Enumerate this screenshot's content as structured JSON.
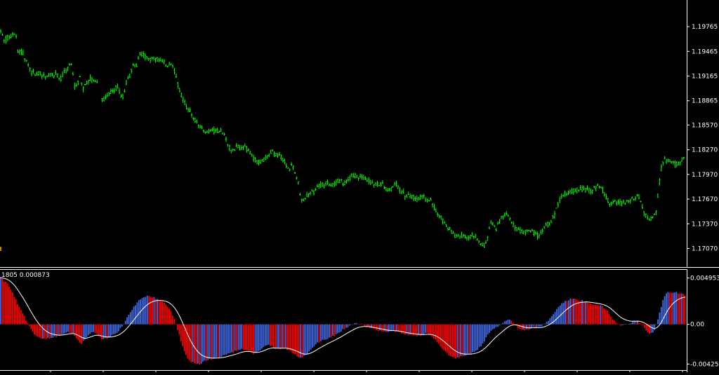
{
  "chart_data": [
    {
      "type": "candlestick",
      "title": "",
      "price_axis": {
        "ticks": [
          "1.19765",
          "1.19465",
          "1.19165",
          "1.18865",
          "1.18570",
          "1.18270",
          "1.17970",
          "1.17670",
          "1.17370",
          "1.17070"
        ],
        "tick_values": [
          1.19765,
          1.19465,
          1.19165,
          1.18865,
          1.1857,
          1.1827,
          1.1797,
          1.1767,
          1.1737,
          1.1707
        ],
        "ylim": [
          1.1687,
          1.20055
        ]
      },
      "colors": {
        "candle": "#00ff00",
        "background": "#000000",
        "axis": "#ffffff"
      },
      "price_path": [
        [
          0,
          1.1972
        ],
        [
          6,
          1.1958
        ],
        [
          12,
          1.1965
        ],
        [
          18,
          1.1965
        ],
        [
          22,
          1.1972
        ],
        [
          26,
          1.1945
        ],
        [
          32,
          1.1945
        ],
        [
          38,
          1.1935
        ],
        [
          44,
          1.1921
        ],
        [
          50,
          1.192
        ],
        [
          56,
          1.192
        ],
        [
          62,
          1.1916
        ],
        [
          68,
          1.1919
        ],
        [
          74,
          1.1917
        ],
        [
          80,
          1.1918
        ],
        [
          86,
          1.1913
        ],
        [
          92,
          1.1921
        ],
        [
          96,
          1.1925
        ],
        [
          100,
          1.1933
        ],
        [
          103,
          1.1925
        ],
        [
          106,
          1.1905
        ],
        [
          110,
          1.1904
        ],
        [
          114,
          1.1915
        ],
        [
          118,
          1.19
        ],
        [
          122,
          1.1906
        ],
        [
          127,
          1.1913
        ],
        [
          133,
          1.1912
        ],
        [
          140,
          1.191
        ],
        [
          145,
          1.1887
        ],
        [
          150,
          1.189
        ],
        [
          156,
          1.1895
        ],
        [
          162,
          1.19
        ],
        [
          168,
          1.1903
        ],
        [
          174,
          1.1888
        ],
        [
          180,
          1.1908
        ],
        [
          186,
          1.192
        ],
        [
          190,
          1.1931
        ],
        [
          194,
          1.1928
        ],
        [
          198,
          1.194
        ],
        [
          203,
          1.1945
        ],
        [
          208,
          1.194
        ],
        [
          214,
          1.1937
        ],
        [
          220,
          1.1938
        ],
        [
          226,
          1.1935
        ],
        [
          232,
          1.1933
        ],
        [
          238,
          1.193
        ],
        [
          244,
          1.1931
        ],
        [
          248,
          1.1925
        ],
        [
          252,
          1.191
        ],
        [
          256,
          1.19
        ],
        [
          262,
          1.1885
        ],
        [
          268,
          1.1875
        ],
        [
          274,
          1.187
        ],
        [
          280,
          1.186
        ],
        [
          286,
          1.1853
        ],
        [
          292,
          1.1849
        ],
        [
          298,
          1.1849
        ],
        [
          304,
          1.185
        ],
        [
          310,
          1.185
        ],
        [
          316,
          1.1849
        ],
        [
          320,
          1.1845
        ],
        [
          326,
          1.183
        ],
        [
          332,
          1.1826
        ],
        [
          338,
          1.183
        ],
        [
          344,
          1.1829
        ],
        [
          350,
          1.183
        ],
        [
          356,
          1.1825
        ],
        [
          362,
          1.1815
        ],
        [
          368,
          1.1812
        ],
        [
          374,
          1.1814
        ],
        [
          380,
          1.1818
        ],
        [
          386,
          1.1825
        ],
        [
          392,
          1.1822
        ],
        [
          398,
          1.182
        ],
        [
          404,
          1.1815
        ],
        [
          408,
          1.1805
        ],
        [
          412,
          1.18
        ],
        [
          416,
          1.181
        ],
        [
          420,
          1.18
        ],
        [
          424,
          1.179
        ],
        [
          428,
          1.177
        ],
        [
          432,
          1.1766
        ],
        [
          436,
          1.177
        ],
        [
          440,
          1.1773
        ],
        [
          444,
          1.178
        ],
        [
          448,
          1.1775
        ],
        [
          452,
          1.1782
        ],
        [
          456,
          1.1783
        ],
        [
          462,
          1.1785
        ],
        [
          468,
          1.1786
        ],
        [
          474,
          1.1783
        ],
        [
          480,
          1.1787
        ],
        [
          486,
          1.179
        ],
        [
          490,
          1.1785
        ],
        [
          494,
          1.179
        ],
        [
          498,
          1.1793
        ],
        [
          502,
          1.1797
        ],
        [
          508,
          1.1794
        ],
        [
          514,
          1.1795
        ],
        [
          520,
          1.179
        ],
        [
          526,
          1.1788
        ],
        [
          532,
          1.1786
        ],
        [
          538,
          1.1784
        ],
        [
          544,
          1.1786
        ],
        [
          548,
          1.1782
        ],
        [
          552,
          1.1775
        ],
        [
          558,
          1.1782
        ],
        [
          564,
          1.1787
        ],
        [
          570,
          1.1778
        ],
        [
          576,
          1.1772
        ],
        [
          580,
          1.177
        ],
        [
          584,
          1.1772
        ],
        [
          590,
          1.1768
        ],
        [
          596,
          1.1769
        ],
        [
          602,
          1.1769
        ],
        [
          608,
          1.1767
        ],
        [
          614,
          1.1765
        ],
        [
          618,
          1.1758
        ],
        [
          622,
          1.175
        ],
        [
          626,
          1.1745
        ],
        [
          630,
          1.1742
        ],
        [
          636,
          1.1735
        ],
        [
          642,
          1.1728
        ],
        [
          648,
          1.1723
        ],
        [
          654,
          1.1722
        ],
        [
          660,
          1.1722
        ],
        [
          666,
          1.1721
        ],
        [
          672,
          1.1724
        ],
        [
          678,
          1.1722
        ],
        [
          682,
          1.1717
        ],
        [
          686,
          1.1713
        ],
        [
          690,
          1.1711
        ],
        [
          694,
          1.1717
        ],
        [
          698,
          1.1735
        ],
        [
          702,
          1.1738
        ],
        [
          706,
          1.173
        ],
        [
          710,
          1.1738
        ],
        [
          714,
          1.1745
        ],
        [
          718,
          1.1746
        ],
        [
          722,
          1.175
        ],
        [
          726,
          1.1742
        ],
        [
          730,
          1.1738
        ],
        [
          736,
          1.173
        ],
        [
          742,
          1.1728
        ],
        [
          748,
          1.1727
        ],
        [
          754,
          1.1728
        ],
        [
          760,
          1.1727
        ],
        [
          766,
          1.1722
        ],
        [
          770,
          1.1726
        ],
        [
          774,
          1.173
        ],
        [
          778,
          1.1738
        ],
        [
          782,
          1.1735
        ],
        [
          786,
          1.1743
        ],
        [
          790,
          1.1748
        ],
        [
          794,
          1.176
        ],
        [
          798,
          1.1768
        ],
        [
          802,
          1.1772
        ],
        [
          808,
          1.1774
        ],
        [
          814,
          1.1776
        ],
        [
          820,
          1.1778
        ],
        [
          826,
          1.178
        ],
        [
          832,
          1.1778
        ],
        [
          838,
          1.1779
        ],
        [
          844,
          1.1778
        ],
        [
          850,
          1.1783
        ],
        [
          856,
          1.1781
        ],
        [
          862,
          1.1773
        ],
        [
          866,
          1.1765
        ],
        [
          870,
          1.176
        ],
        [
          876,
          1.1763
        ],
        [
          882,
          1.1763
        ],
        [
          888,
          1.1762
        ],
        [
          892,
          1.1765
        ],
        [
          898,
          1.1766
        ],
        [
          904,
          1.177
        ],
        [
          910,
          1.1769
        ],
        [
          914,
          1.1762
        ],
        [
          918,
          1.1748
        ],
        [
          922,
          1.1745
        ],
        [
          926,
          1.1742
        ],
        [
          930,
          1.1745
        ],
        [
          934,
          1.175
        ],
        [
          938,
          1.178
        ],
        [
          942,
          1.1805
        ],
        [
          946,
          1.1817
        ],
        [
          950,
          1.1814
        ],
        [
          955,
          1.1813
        ],
        [
          960,
          1.181
        ],
        [
          966,
          1.1811
        ],
        [
          972,
          1.1815
        ],
        [
          976,
          1.1816
        ]
      ],
      "gaps_after_x": [
        140
      ]
    },
    {
      "type": "oscillator",
      "title_text": "1805 0.000873",
      "value_axis": {
        "ticks": [
          "0.004953",
          "0.00",
          "-0.004254"
        ],
        "tick_values": [
          0.004953,
          0.0,
          -0.004254
        ],
        "ylim": [
          -0.0043,
          0.0053
        ]
      },
      "colors": {
        "up": "#4169e1",
        "down": "#ff0000",
        "signal": "#ffffff"
      },
      "bar_step": 2.4,
      "hist_path": [
        [
          0,
          0.005
        ],
        [
          10,
          0.0044
        ],
        [
          18,
          0.0034
        ],
        [
          26,
          0.002
        ],
        [
          34,
          0.0009
        ],
        [
          42,
          -0.0003
        ],
        [
          50,
          -0.0012
        ],
        [
          58,
          -0.0015
        ],
        [
          66,
          -0.0016
        ],
        [
          74,
          -0.0014
        ],
        [
          82,
          -0.0013
        ],
        [
          90,
          -0.001
        ],
        [
          98,
          -0.0008
        ],
        [
          104,
          -0.001
        ],
        [
          110,
          -0.0016
        ],
        [
          116,
          -0.0021
        ],
        [
          122,
          -0.0015
        ],
        [
          128,
          -0.001
        ],
        [
          134,
          -0.0008
        ],
        [
          140,
          -0.0012
        ],
        [
          146,
          -0.0016
        ],
        [
          152,
          -0.0015
        ],
        [
          158,
          -0.0013
        ],
        [
          164,
          -0.001
        ],
        [
          170,
          -0.0006
        ],
        [
          176,
          0.0001
        ],
        [
          182,
          0.0009
        ],
        [
          188,
          0.0016
        ],
        [
          194,
          0.0022
        ],
        [
          200,
          0.0027
        ],
        [
          206,
          0.003
        ],
        [
          212,
          0.003
        ],
        [
          218,
          0.0029
        ],
        [
          224,
          0.0027
        ],
        [
          230,
          0.0025
        ],
        [
          236,
          0.0022
        ],
        [
          242,
          0.0016
        ],
        [
          248,
          0.0006
        ],
        [
          254,
          -0.0008
        ],
        [
          260,
          -0.0023
        ],
        [
          266,
          -0.0035
        ],
        [
          272,
          -0.004
        ],
        [
          278,
          -0.0042
        ],
        [
          284,
          -0.00425
        ],
        [
          290,
          -0.004
        ],
        [
          296,
          -0.0038
        ],
        [
          302,
          -0.0037
        ],
        [
          308,
          -0.0036
        ],
        [
          314,
          -0.0035
        ],
        [
          320,
          -0.0033
        ],
        [
          326,
          -0.0031
        ],
        [
          332,
          -0.003
        ],
        [
          338,
          -0.0028
        ],
        [
          344,
          -0.0026
        ],
        [
          350,
          -0.0028
        ],
        [
          356,
          -0.003
        ],
        [
          362,
          -0.0032
        ],
        [
          368,
          -0.0029
        ],
        [
          374,
          -0.0025
        ],
        [
          380,
          -0.0022
        ],
        [
          386,
          -0.0023
        ],
        [
          392,
          -0.0026
        ],
        [
          398,
          -0.0026
        ],
        [
          404,
          -0.0025
        ],
        [
          410,
          -0.0027
        ],
        [
          416,
          -0.003
        ],
        [
          422,
          -0.0033
        ],
        [
          428,
          -0.0036
        ],
        [
          434,
          -0.0034
        ],
        [
          440,
          -0.0029
        ],
        [
          446,
          -0.0024
        ],
        [
          452,
          -0.002
        ],
        [
          458,
          -0.0018
        ],
        [
          464,
          -0.0016
        ],
        [
          470,
          -0.0014
        ],
        [
          476,
          -0.0012
        ],
        [
          482,
          -0.0009
        ],
        [
          488,
          -0.0006
        ],
        [
          494,
          -0.0003
        ],
        [
          500,
          -0.0001
        ],
        [
          506,
          0.0001
        ],
        [
          512,
          0.0
        ],
        [
          518,
          -0.0001
        ],
        [
          524,
          -0.0003
        ],
        [
          530,
          -0.0005
        ],
        [
          536,
          -0.0006
        ],
        [
          542,
          -0.0007
        ],
        [
          548,
          -0.0008
        ],
        [
          554,
          -0.0008
        ],
        [
          560,
          -0.0007
        ],
        [
          566,
          -0.0008
        ],
        [
          572,
          -0.001
        ],
        [
          578,
          -0.0011
        ],
        [
          584,
          -0.0011
        ],
        [
          590,
          -0.0012
        ],
        [
          596,
          -0.0012
        ],
        [
          602,
          -0.0011
        ],
        [
          608,
          -0.001
        ],
        [
          614,
          -0.0012
        ],
        [
          620,
          -0.0016
        ],
        [
          626,
          -0.0022
        ],
        [
          632,
          -0.0027
        ],
        [
          638,
          -0.0032
        ],
        [
          644,
          -0.0035
        ],
        [
          650,
          -0.0036
        ],
        [
          656,
          -0.0035
        ],
        [
          662,
          -0.0033
        ],
        [
          668,
          -0.0032
        ],
        [
          674,
          -0.003
        ],
        [
          680,
          -0.0027
        ],
        [
          686,
          -0.0022
        ],
        [
          692,
          -0.0015
        ],
        [
          698,
          -0.0008
        ],
        [
          704,
          -0.0004
        ],
        [
          710,
          -0.0002
        ],
        [
          716,
          0.0002
        ],
        [
          722,
          0.0005
        ],
        [
          728,
          0.0004
        ],
        [
          734,
          -0.0001
        ],
        [
          740,
          -0.0005
        ],
        [
          746,
          -0.0006
        ],
        [
          752,
          -0.0005
        ],
        [
          758,
          -0.0003
        ],
        [
          764,
          -0.0004
        ],
        [
          770,
          -0.0003
        ],
        [
          776,
          0.0001
        ],
        [
          782,
          0.0005
        ],
        [
          788,
          0.0011
        ],
        [
          794,
          0.0017
        ],
        [
          800,
          0.0022
        ],
        [
          806,
          0.0025
        ],
        [
          812,
          0.0027
        ],
        [
          818,
          0.0027
        ],
        [
          824,
          0.0026
        ],
        [
          830,
          0.0025
        ],
        [
          836,
          0.0024
        ],
        [
          842,
          0.0022
        ],
        [
          848,
          0.0021
        ],
        [
          854,
          0.002
        ],
        [
          860,
          0.0018
        ],
        [
          866,
          0.0013
        ],
        [
          872,
          0.0006
        ],
        [
          878,
          0.0001
        ],
        [
          884,
          -0.0001
        ],
        [
          890,
          0.0
        ],
        [
          896,
          0.0001
        ],
        [
          902,
          0.0003
        ],
        [
          908,
          0.0004
        ],
        [
          914,
          0.0
        ],
        [
          920,
          -0.0006
        ],
        [
          926,
          -0.0011
        ],
        [
          932,
          -0.0007
        ],
        [
          938,
          0.0008
        ],
        [
          942,
          0.002
        ],
        [
          946,
          0.003
        ],
        [
          950,
          0.0034
        ],
        [
          956,
          0.0034
        ],
        [
          962,
          0.0034
        ],
        [
          968,
          0.0033
        ],
        [
          972,
          0.0032
        ],
        [
          976,
          0.0031
        ]
      ]
    }
  ]
}
